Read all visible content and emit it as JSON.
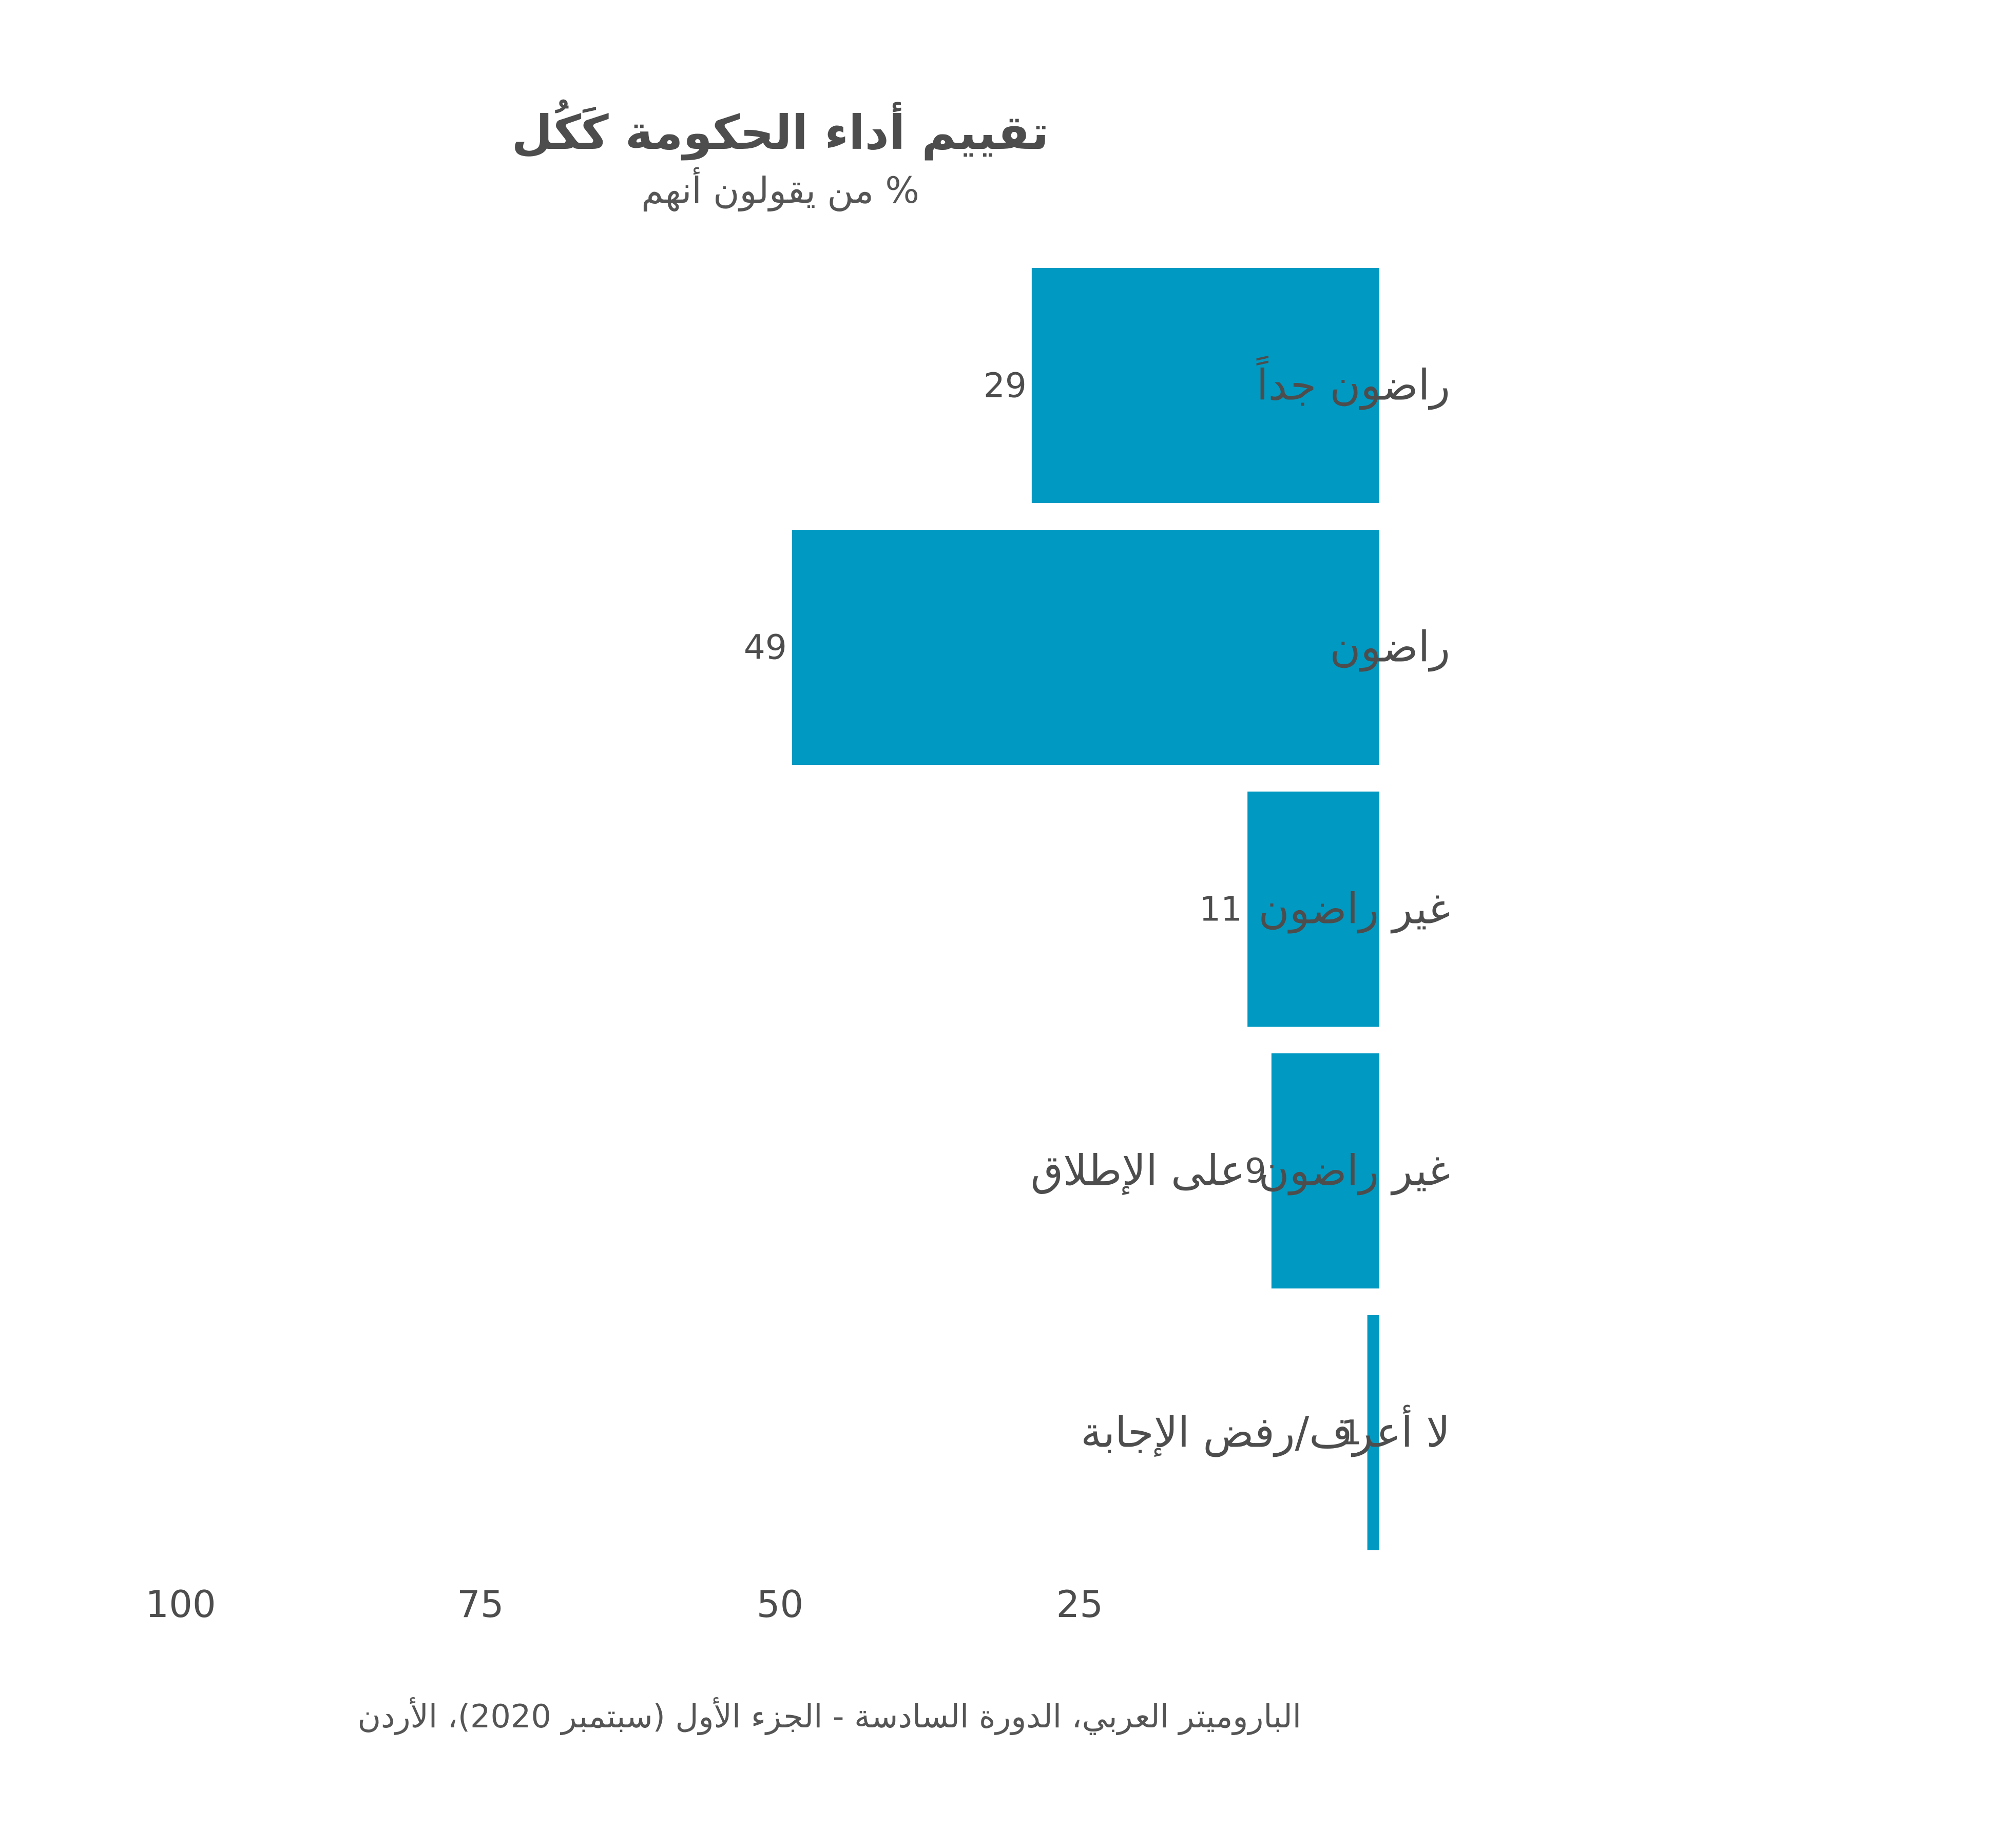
{
  "chart_data": {
    "type": "bar",
    "orientation": "horizontal",
    "direction": "right-to-left",
    "title": "تقييم أداء الحكومة كَكُل",
    "subtitle": "% من يقولون أنهم",
    "categories": [
      "راضون جداً",
      "راضون",
      "غير راضون",
      "غير راضون على الإطلاق",
      "لا أعرف/رفض الإجابة"
    ],
    "values": [
      29,
      49,
      11,
      9,
      1
    ],
    "value_labels": [
      "29",
      "49",
      "11",
      "9",
      "1"
    ],
    "xlim": [
      0,
      100
    ],
    "ticks": [
      100,
      75,
      50,
      25
    ],
    "tick_labels": [
      "100",
      "75",
      "50",
      "25"
    ],
    "grid": false,
    "legend": "none",
    "bar_color": "#0099c1",
    "source": "الباروميتر العربي، الدورة السادسة - الجزء الأول (سبتمبر 2020)، الأردن"
  }
}
